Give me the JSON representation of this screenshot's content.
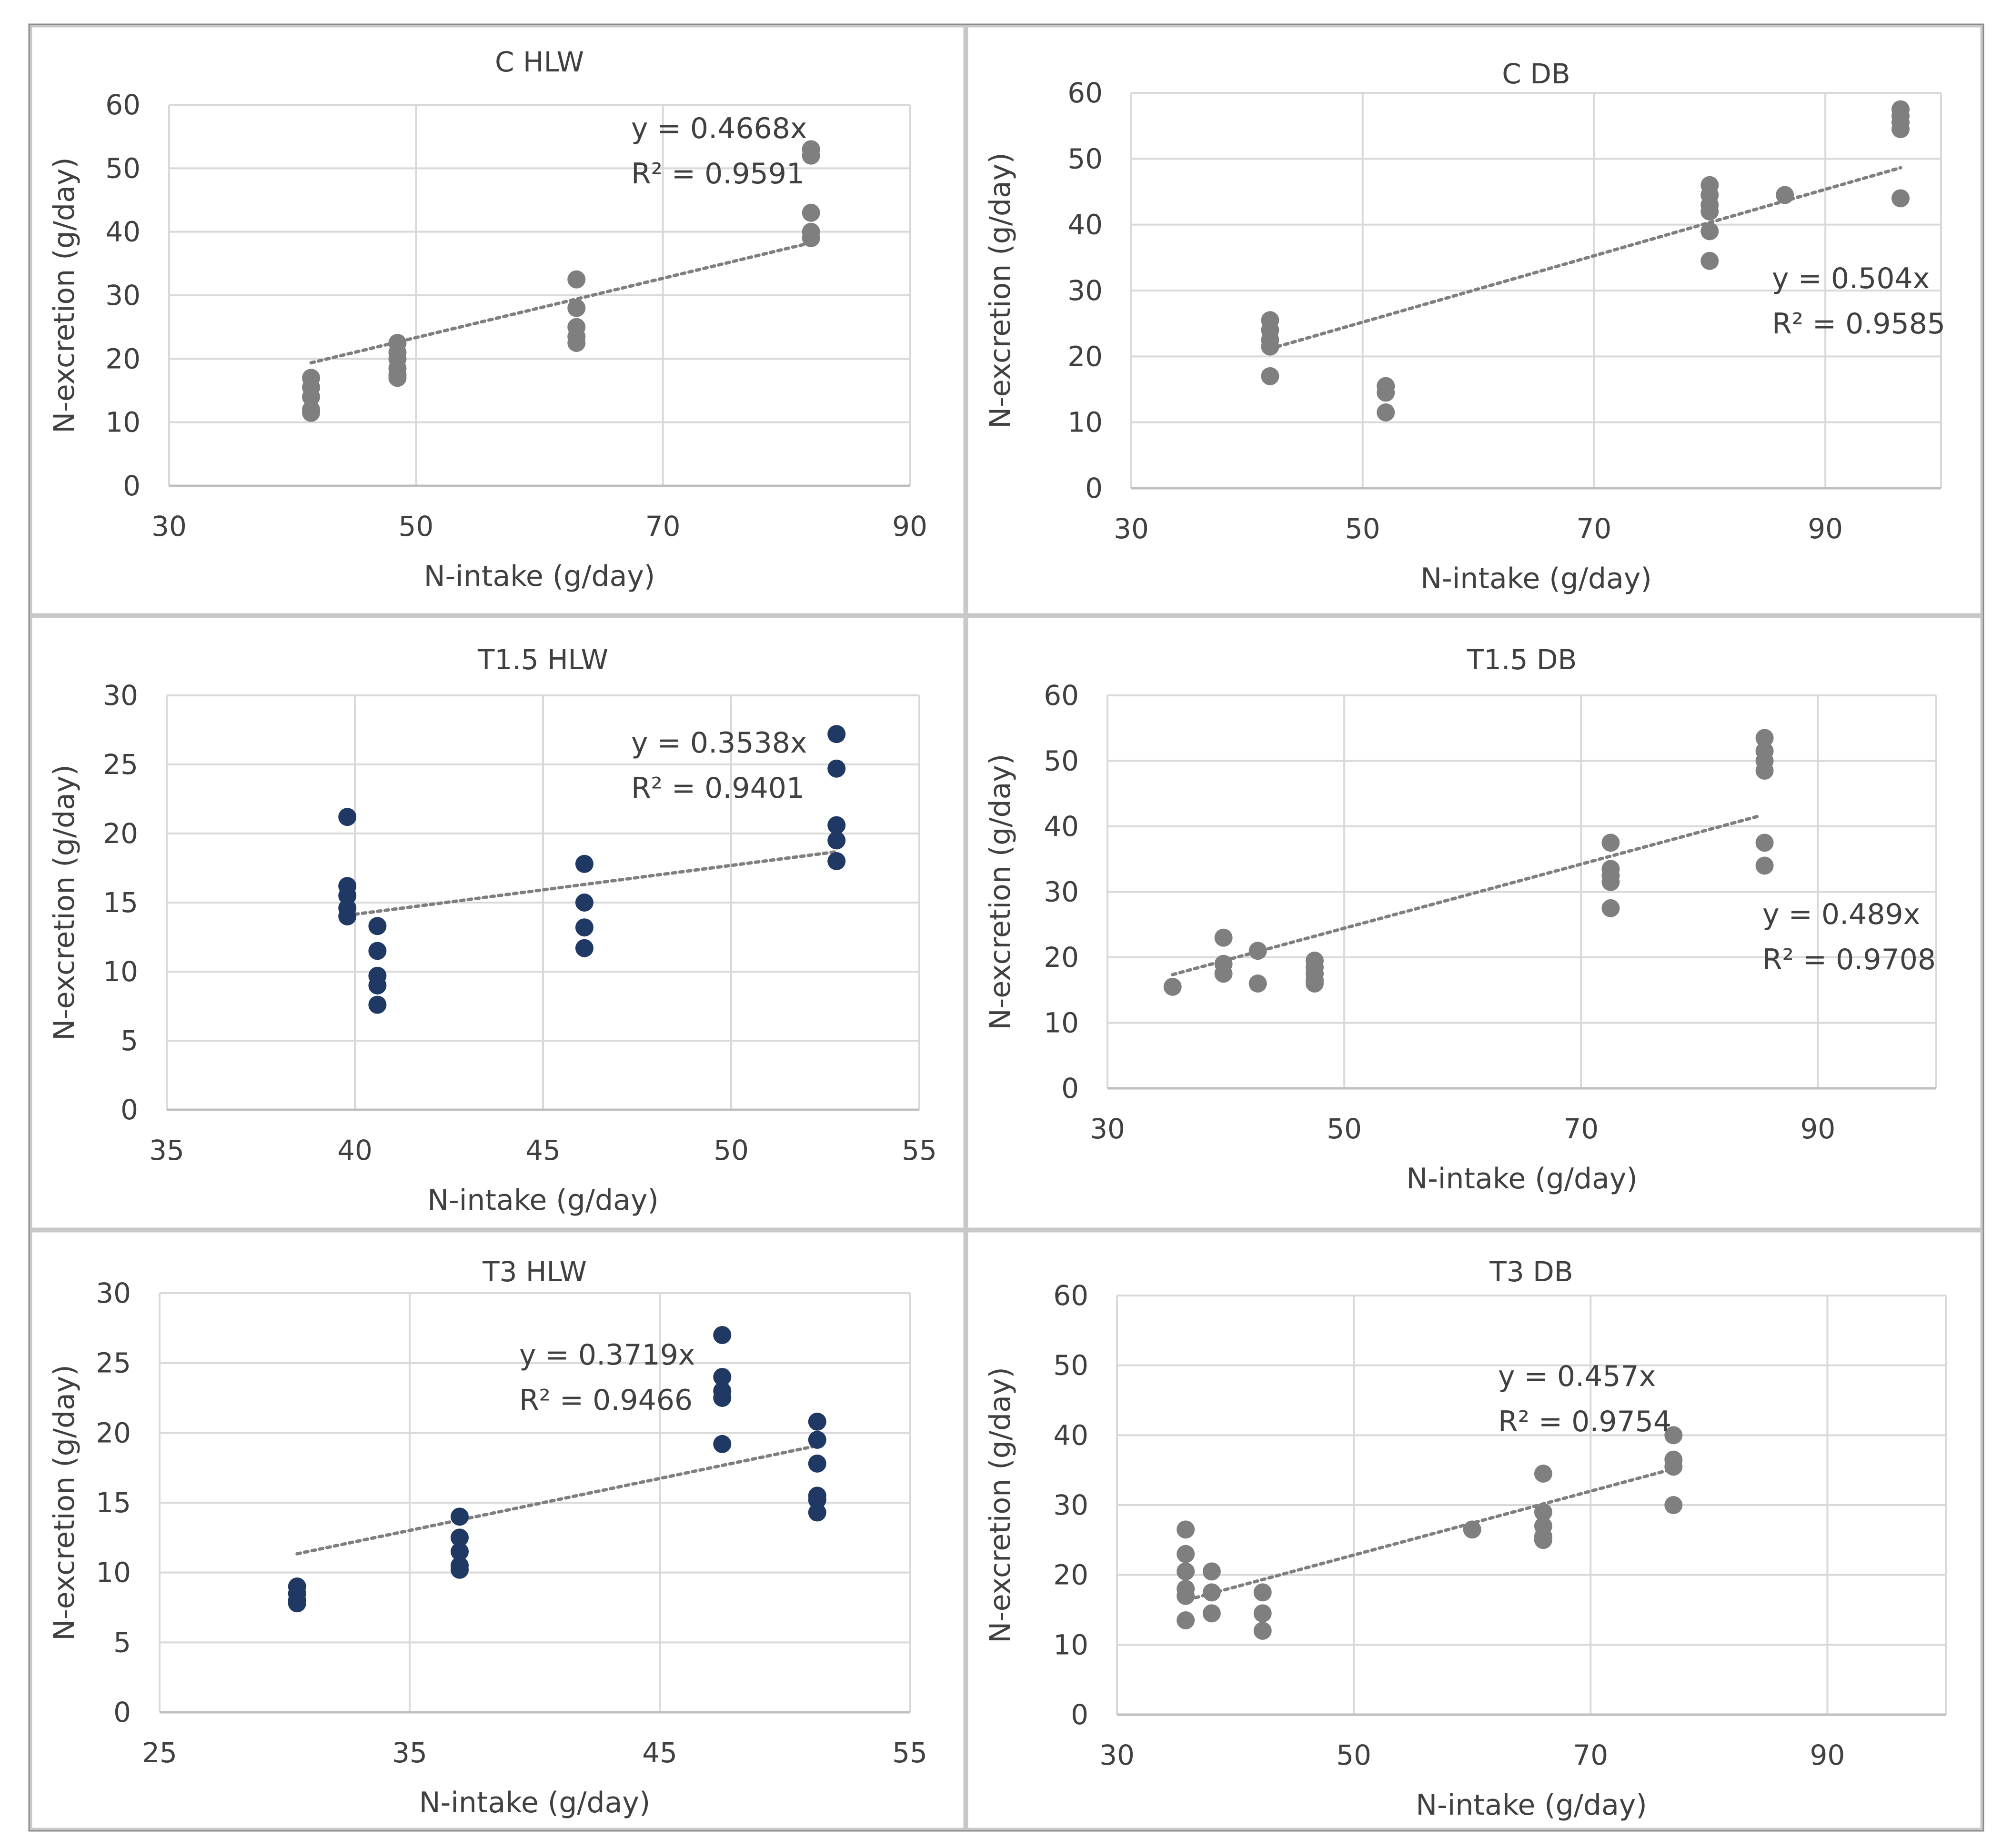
{
  "colors": {
    "gray_marker": "#7f7f7f",
    "navy_marker": "#203864",
    "grid": "#d9d9d9",
    "frame": "#8c8c8c",
    "text": "#404040",
    "trend": "#7f7f7f"
  },
  "chart_data": [
    {
      "type": "scatter",
      "title": "C HLW",
      "xlabel": "N-intake (g/day)",
      "ylabel": "N-excretion (g/day)",
      "xlim": [
        30,
        90
      ],
      "ylim": [
        0,
        60
      ],
      "xticks": [
        30,
        50,
        70,
        90
      ],
      "yticks": [
        0,
        10,
        20,
        30,
        40,
        50,
        60
      ],
      "xtick_labels": [
        "30",
        "50",
        "70",
        "90"
      ],
      "ytick_labels": [
        "0",
        "10",
        "20",
        "30",
        "40",
        "50",
        "60"
      ],
      "marker": "gray",
      "equation": "y = 0.4668x",
      "r2": "R² = 0.9591",
      "trend": {
        "slope": 0.4668,
        "x_range": [
          41.5,
          82
        ]
      },
      "x": [
        41.5,
        41.5,
        41.5,
        41.5,
        41.5,
        48.5,
        48.5,
        48.5,
        48.5,
        48.5,
        48.5,
        63,
        63,
        63,
        63,
        63,
        82,
        82,
        82,
        82,
        82
      ],
      "y": [
        17,
        15.5,
        14,
        12,
        11.5,
        22.5,
        21,
        20,
        18.5,
        17.5,
        17,
        32.5,
        28,
        25,
        23.5,
        22.5,
        53,
        52,
        43,
        40,
        39
      ]
    },
    {
      "type": "scatter",
      "title": "C DB",
      "xlabel": "N-intake (g/day)",
      "ylabel": "N-excretion (g/day)",
      "xlim": [
        30,
        100
      ],
      "ylim": [
        0,
        60
      ],
      "xticks": [
        30,
        50,
        70,
        90
      ],
      "yticks": [
        0,
        10,
        20,
        30,
        40,
        50,
        60
      ],
      "xtick_labels": [
        "30",
        "50",
        "70",
        "90"
      ],
      "ytick_labels": [
        "0",
        "10",
        "20",
        "30",
        "40",
        "50",
        "60"
      ],
      "marker": "gray",
      "equation": "y = 0.504x",
      "r2": "R² = 0.9585",
      "trend": {
        "slope": 0.504,
        "x_range": [
          42,
          96.5
        ]
      },
      "x": [
        42,
        42,
        42,
        42,
        42,
        52,
        52,
        52,
        80,
        80,
        80,
        80,
        80,
        80,
        86.5,
        96.5,
        96.5,
        96.5,
        96.5,
        96.5
      ],
      "y": [
        25.5,
        24,
        22.5,
        21.5,
        17,
        15.5,
        14.5,
        11.5,
        46,
        44.5,
        43,
        42,
        39,
        34.5,
        44.5,
        57.5,
        56.5,
        55.5,
        54.5,
        44
      ]
    },
    {
      "type": "scatter",
      "title": "T1.5 HLW",
      "xlabel": "N-intake (g/day)",
      "ylabel": "N-excretion (g/day)",
      "xlim": [
        35,
        55
      ],
      "ylim": [
        0,
        30
      ],
      "xticks": [
        35,
        40,
        45,
        50,
        55
      ],
      "yticks": [
        0,
        5,
        10,
        15,
        20,
        25,
        30
      ],
      "xtick_labels": [
        "35",
        "40",
        "45",
        "50",
        "55"
      ],
      "ytick_labels": [
        "0",
        "5",
        "10",
        "15",
        "20",
        "25",
        "30"
      ],
      "marker": "navy",
      "equation": "y = 0.3538x",
      "r2": "R² = 0.9401",
      "trend": {
        "slope": 0.3538,
        "x_range": [
          39.8,
          52.8
        ]
      },
      "x": [
        39.8,
        39.8,
        39.8,
        39.8,
        39.8,
        40.6,
        40.6,
        40.6,
        40.6,
        40.6,
        46.1,
        46.1,
        46.1,
        46.1,
        52.8,
        52.8,
        52.8,
        52.8,
        52.8
      ],
      "y": [
        21.2,
        16.2,
        15.5,
        14.6,
        14,
        13.3,
        11.5,
        9.7,
        9,
        7.6,
        17.8,
        15,
        13.2,
        11.7,
        27.2,
        24.7,
        20.6,
        19.5,
        18
      ]
    },
    {
      "type": "scatter",
      "title": "T1.5 DB",
      "xlabel": "N-intake (g/day)",
      "ylabel": "N-excretion (g/day)",
      "xlim": [
        30,
        100
      ],
      "ylim": [
        0,
        60
      ],
      "xticks": [
        30,
        50,
        70,
        90
      ],
      "yticks": [
        0,
        10,
        20,
        30,
        40,
        50,
        60
      ],
      "xtick_labels": [
        "30",
        "50",
        "70",
        "90"
      ],
      "ytick_labels": [
        "0",
        "10",
        "20",
        "30",
        "40",
        "50",
        "60"
      ],
      "marker": "gray",
      "equation": "y = 0.489x",
      "r2": "R² = 0.9708",
      "trend": {
        "slope": 0.489,
        "x_range": [
          35.5,
          85
        ]
      },
      "x": [
        35.5,
        39.8,
        39.8,
        39.8,
        42.7,
        42.7,
        47.5,
        47.5,
        47.5,
        47.5,
        47.5,
        72.5,
        72.5,
        72.5,
        72.5,
        72.5,
        85.5,
        85.5,
        85.5,
        85.5,
        85.5,
        85.5
      ],
      "y": [
        15.5,
        23,
        19,
        17.5,
        21,
        16,
        19.5,
        18.5,
        17.5,
        16.5,
        16,
        37.5,
        33.5,
        32.5,
        31.5,
        27.5,
        53.5,
        51.5,
        50,
        48.5,
        37.5,
        34
      ]
    },
    {
      "type": "scatter",
      "title": "T3 HLW",
      "xlabel": "N-intake (g/day)",
      "ylabel": "N-excretion (g/day)",
      "xlim": [
        25,
        55
      ],
      "ylim": [
        0,
        30
      ],
      "xticks": [
        25,
        35,
        45,
        55
      ],
      "yticks": [
        0,
        5,
        10,
        15,
        20,
        25,
        30
      ],
      "xtick_labels": [
        "25",
        "35",
        "45",
        "55"
      ],
      "ytick_labels": [
        "0",
        "5",
        "10",
        "15",
        "20",
        "25",
        "30"
      ],
      "marker": "navy",
      "equation": "y = 0.3719x",
      "r2": "R² = 0.9466",
      "trend": {
        "slope": 0.3719,
        "x_range": [
          30.5,
          51.5
        ]
      },
      "x": [
        30.5,
        30.5,
        30.5,
        30.5,
        37,
        37,
        37,
        37,
        37,
        47.5,
        47.5,
        47.5,
        47.5,
        47.5,
        51.3,
        51.3,
        51.3,
        51.3,
        51.3,
        51.3
      ],
      "y": [
        9,
        8.5,
        8,
        7.8,
        14,
        12.5,
        11.5,
        10.5,
        10.2,
        27,
        24,
        23,
        22.5,
        19.2,
        20.8,
        19.5,
        17.8,
        15.5,
        15.2,
        14.3
      ]
    },
    {
      "type": "scatter",
      "title": "T3 DB",
      "xlabel": "N-intake (g/day)",
      "ylabel": "N-excretion (g/day)",
      "xlim": [
        30,
        100
      ],
      "ylim": [
        0,
        60
      ],
      "xticks": [
        30,
        50,
        70,
        90
      ],
      "yticks": [
        0,
        10,
        20,
        30,
        40,
        50,
        60
      ],
      "xtick_labels": [
        "30",
        "50",
        "70",
        "90"
      ],
      "ytick_labels": [
        "0",
        "10",
        "20",
        "30",
        "40",
        "50",
        "60"
      ],
      "marker": "gray",
      "equation": "y = 0.457x",
      "r2": "R² = 0.9754",
      "trend": {
        "slope": 0.457,
        "x_range": [
          36,
          77
        ]
      },
      "x": [
        35.8,
        35.8,
        35.8,
        35.8,
        35.8,
        35.8,
        38,
        38,
        38,
        42.3,
        42.3,
        42.3,
        60,
        66,
        66,
        66,
        66,
        66,
        77,
        77,
        77,
        77
      ],
      "y": [
        26.5,
        23,
        20.5,
        18,
        17,
        13.5,
        20.5,
        17.5,
        14.5,
        17.5,
        14.5,
        12,
        26.5,
        34.5,
        29,
        27,
        25.5,
        25,
        40,
        36.5,
        35.5,
        30
      ]
    }
  ]
}
